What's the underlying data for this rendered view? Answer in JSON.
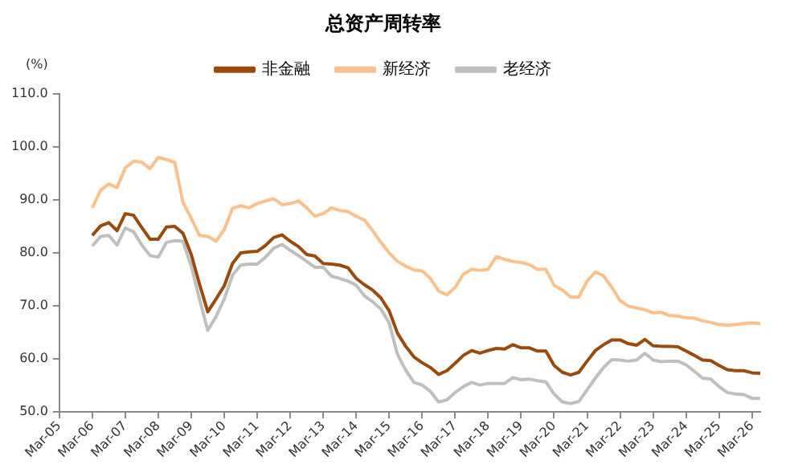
{
  "chart_data": {
    "type": "line",
    "title": "总资产周转率",
    "ylabel": "(%)",
    "categories": [
      "Mar-05",
      null,
      null,
      null,
      "Mar-06",
      null,
      null,
      null,
      "Mar-07",
      null,
      null,
      null,
      "Mar-08",
      null,
      null,
      null,
      "Mar-09",
      null,
      null,
      null,
      "Mar-10",
      null,
      null,
      null,
      "Mar-11",
      null,
      null,
      null,
      "Mar-12",
      null,
      null,
      null,
      "Mar-13",
      null,
      null,
      null,
      "Mar-14",
      null,
      null,
      null,
      "Mar-15",
      null,
      null,
      null,
      "Mar-16",
      null,
      null,
      null,
      "Mar-17",
      null,
      null,
      null,
      "Mar-18",
      null,
      null,
      null,
      "Mar-19",
      null,
      null,
      null,
      "Mar-20",
      null,
      null,
      null,
      "Mar-21",
      null,
      null,
      null,
      "Mar-22",
      null,
      null,
      null,
      "Mar-23",
      null,
      null,
      null,
      "Mar-24",
      null,
      null,
      null,
      "Mar-25",
      null,
      null,
      null,
      "Mar-26",
      null
    ],
    "series": [
      {
        "name": "非金融",
        "color": "#9c4a0c",
        "values": [
          null,
          null,
          null,
          null,
          83.3,
          85.1,
          85.7,
          84.2,
          87.4,
          87.1,
          84.8,
          82.6,
          82.6,
          84.9,
          85.0,
          83.7,
          79.7,
          74.1,
          68.9,
          71.3,
          73.8,
          78.0,
          80.0,
          80.2,
          80.3,
          81.4,
          82.9,
          83.4,
          82.2,
          81.2,
          79.7,
          79.4,
          78.0,
          77.9,
          77.7,
          77.2,
          75.2,
          74.0,
          73.0,
          71.5,
          69.1,
          64.9,
          62.4,
          60.4,
          59.3,
          58.4,
          57.1,
          57.8,
          59.2,
          60.7,
          61.6,
          61.1,
          61.6,
          62.0,
          61.9,
          62.7,
          62.1,
          62.1,
          61.5,
          61.5,
          58.8,
          57.5,
          57.0,
          57.5,
          59.6,
          61.6,
          62.7,
          63.6,
          63.6,
          62.9,
          62.6,
          63.7,
          62.5,
          62.4,
          62.4,
          62.3,
          61.5,
          60.7,
          59.8,
          59.7,
          58.8,
          58.0,
          57.8,
          57.8,
          57.4,
          57.3
        ]
      },
      {
        "name": "新经济",
        "color": "#fbc08c",
        "values": [
          null,
          null,
          null,
          null,
          88.5,
          91.8,
          93.0,
          92.3,
          96.0,
          97.3,
          97.1,
          95.9,
          98.0,
          97.6,
          97.1,
          89.5,
          86.5,
          83.3,
          83.1,
          82.2,
          84.4,
          88.4,
          88.9,
          88.5,
          89.3,
          89.8,
          90.2,
          89.1,
          89.3,
          89.8,
          88.5,
          86.9,
          87.4,
          88.5,
          88.0,
          87.8,
          86.9,
          86.2,
          84.2,
          82.0,
          80.0,
          78.4,
          77.5,
          76.8,
          76.6,
          75.2,
          72.8,
          72.1,
          73.5,
          76.0,
          76.9,
          76.7,
          76.9,
          79.3,
          78.8,
          78.4,
          78.2,
          77.8,
          76.9,
          76.9,
          73.9,
          73.0,
          71.7,
          71.7,
          74.7,
          76.4,
          75.7,
          73.5,
          71.0,
          70.0,
          69.6,
          69.3,
          68.7,
          68.8,
          68.2,
          68.1,
          67.8,
          67.7,
          67.2,
          66.9,
          66.5,
          66.4,
          66.5,
          66.7,
          66.8,
          66.7
        ]
      },
      {
        "name": "老经济",
        "color": "#bfbfbf",
        "values": [
          null,
          null,
          null,
          null,
          81.3,
          83.1,
          83.3,
          81.5,
          84.7,
          84.0,
          81.5,
          79.5,
          79.2,
          82.0,
          82.3,
          82.2,
          77.5,
          71.3,
          65.4,
          68.0,
          71.3,
          75.8,
          77.7,
          77.9,
          77.9,
          79.2,
          80.9,
          81.6,
          80.5,
          79.5,
          78.4,
          77.3,
          77.3,
          75.6,
          75.2,
          74.7,
          73.9,
          71.9,
          70.8,
          69.4,
          66.8,
          60.9,
          57.9,
          55.6,
          55.1,
          53.9,
          51.9,
          52.3,
          53.7,
          54.8,
          55.6,
          55.1,
          55.4,
          55.4,
          55.4,
          56.5,
          56.1,
          56.2,
          55.9,
          55.7,
          53.4,
          51.9,
          51.6,
          52.0,
          54.2,
          56.4,
          58.4,
          59.9,
          59.8,
          59.6,
          59.8,
          61.1,
          59.8,
          59.5,
          59.6,
          59.6,
          58.9,
          57.7,
          56.4,
          56.2,
          54.8,
          53.7,
          53.4,
          53.3,
          52.6,
          52.6
        ]
      }
    ],
    "ylim": [
      50,
      110
    ],
    "yticks": [
      {
        "value": 50,
        "label": "50.0"
      },
      {
        "value": 60,
        "label": "60.0"
      },
      {
        "value": 70,
        "label": "70.0"
      },
      {
        "value": 80,
        "label": "80.0"
      },
      {
        "value": 90,
        "label": "90.0"
      },
      {
        "value": 100,
        "label": "100.0"
      },
      {
        "value": 110,
        "label": "110.0"
      }
    ],
    "legend": "top",
    "marker": "none"
  }
}
